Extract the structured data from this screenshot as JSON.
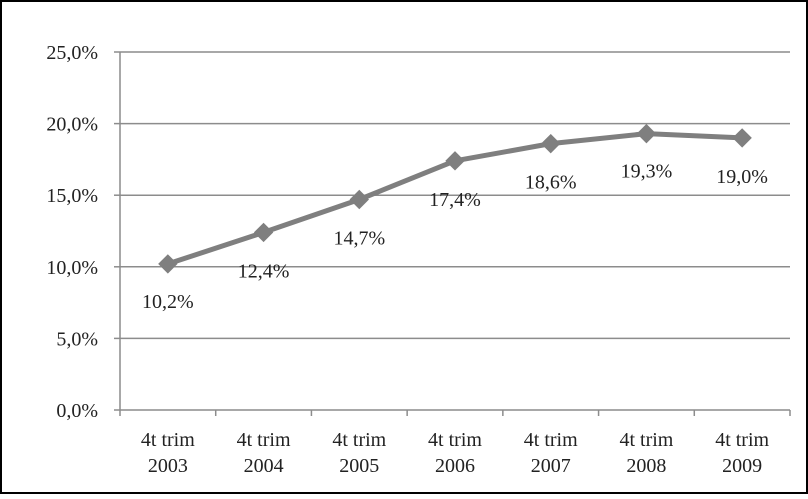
{
  "chart_data": {
    "type": "line",
    "title": "",
    "xlabel": "",
    "ylabel": "",
    "categories": [
      [
        "4t trim",
        "2003"
      ],
      [
        "4t trim",
        "2004"
      ],
      [
        "4t trim",
        "2005"
      ],
      [
        "4t trim",
        "2006"
      ],
      [
        "4t trim",
        "2007"
      ],
      [
        "4t trim",
        "2008"
      ],
      [
        "4t trim",
        "2009"
      ]
    ],
    "series": [
      {
        "values": [
          10.2,
          12.4,
          14.7,
          17.4,
          18.6,
          19.3,
          19.0
        ],
        "data_labels": [
          "10,2%",
          "12,4%",
          "14,7%",
          "17,4%",
          "18,6%",
          "19,3%",
          "19,0%"
        ],
        "color": "#7f7f7f",
        "marker": "diamond"
      }
    ],
    "ylim": [
      0,
      25
    ],
    "yticks": [
      0,
      5,
      10,
      15,
      20,
      25
    ],
    "ytick_labels": [
      "0,0%",
      "5,0%",
      "10,0%",
      "15,0%",
      "20,0%",
      "25,0%"
    ],
    "grid": true,
    "legend": "none",
    "colors": {
      "line": "#7f7f7f",
      "grid": "#8c8c8c",
      "frame": "#000000",
      "text": "#222222"
    }
  }
}
